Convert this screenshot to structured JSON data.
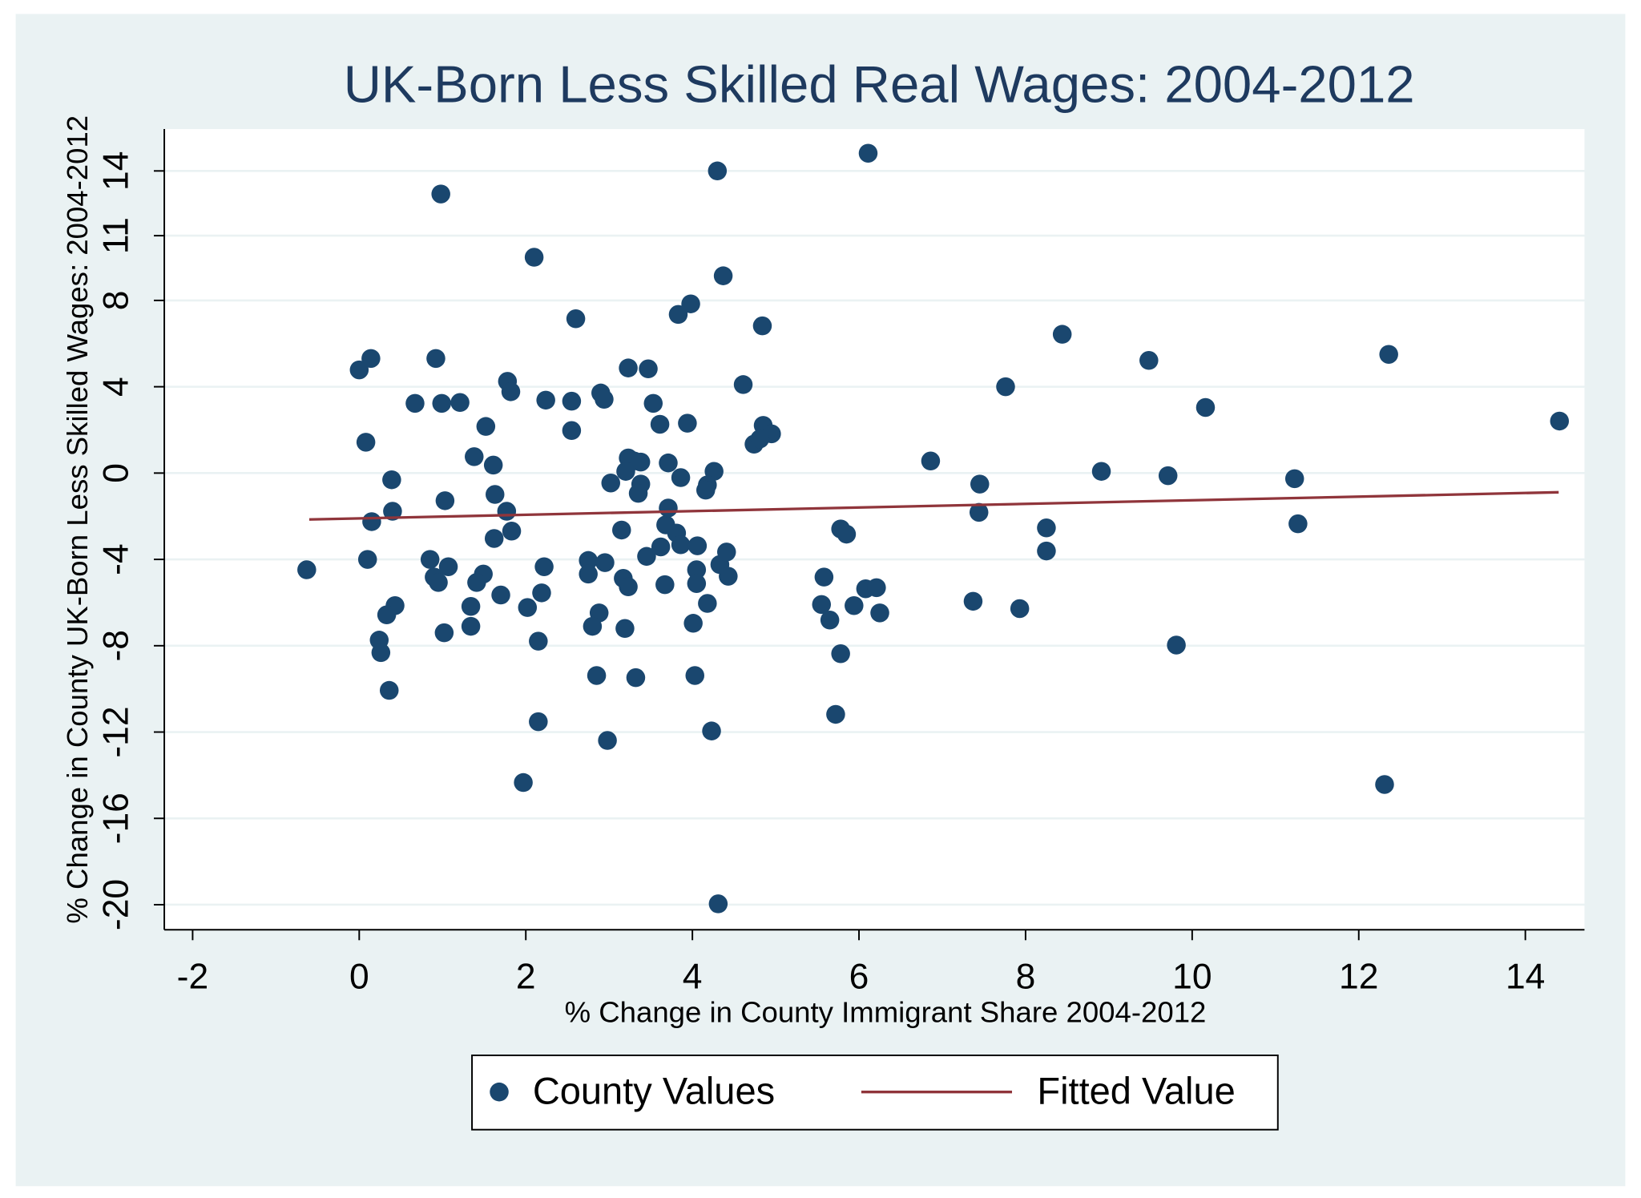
{
  "chart_data": {
    "type": "scatter",
    "title": "UK-Born Less Skilled Real Wages: 2004-2012",
    "x_label": "% Change in County Immigrant Share 2004-2012",
    "y_label": "% Change in County UK-Born Less Skilled Wages: 2004-2012",
    "xlim": [
      -2.34,
      14.71
    ],
    "ylim": [
      -21.16,
      15.94
    ],
    "xticks": [
      -2,
      0,
      2,
      4,
      6,
      8,
      10,
      12,
      14
    ],
    "yticks": [
      -20,
      -16,
      -12,
      -8,
      -4,
      0,
      4,
      8,
      11,
      14
    ],
    "grid": true,
    "legend": "bottom",
    "series": [
      {
        "name": "County Values",
        "type": "scatter",
        "color": "#1a476f",
        "x": [
          -0.63,
          0,
          0.14,
          0.08,
          0.15,
          0.1,
          0.39,
          0.4,
          0.43,
          0.33,
          0.24,
          0.26,
          0.36,
          0.67,
          0.98,
          0.92,
          0.99,
          1.21,
          1.03,
          0.85,
          0.9,
          0.95,
          1.07,
          1.02,
          1.38,
          1.52,
          1.61,
          1.63,
          1.78,
          1.82,
          1.77,
          1.83,
          1.62,
          1.49,
          1.41,
          1.34,
          1.34,
          1.7,
          2.1,
          2.24,
          2.55,
          2.55,
          2.6,
          2.22,
          2.19,
          2.02,
          2.15,
          2.15,
          1.97,
          2.9,
          2.94,
          3.23,
          3.47,
          3.53,
          3.61,
          3.02,
          3.23,
          3.3,
          3.38,
          3.2,
          3.38,
          3.35,
          3.15,
          2.75,
          2.75,
          2.95,
          3.17,
          3.23,
          2.88,
          2.8,
          3.19,
          2.85,
          3.32,
          2.98,
          3.45,
          3.62,
          3.68,
          3.71,
          3.81,
          3.86,
          3.67,
          3.71,
          3.86,
          3.83,
          3.98,
          3.94,
          4.06,
          4.05,
          4.05,
          4.01,
          4.03,
          4.18,
          4.23,
          4.31,
          4.3,
          4.37,
          4.26,
          4.18,
          4.16,
          4.33,
          4.41,
          4.43,
          4.84,
          4.61,
          4.85,
          4.95,
          4.74,
          4.81,
          6.11,
          5.58,
          5.55,
          5.65,
          5.78,
          5.85,
          5.94,
          6.08,
          6.21,
          6.25,
          5.78,
          5.72,
          6.86,
          7.45,
          7.44,
          7.37,
          7.93,
          7.76,
          8.44,
          8.25,
          8.25,
          8.91,
          9.48,
          9.71,
          9.81,
          10.16,
          11.23,
          11.27,
          12.36,
          12.31,
          14.41
        ],
        "values": [
          -4.48,
          4.78,
          5.31,
          1.43,
          -2.25,
          -4.0,
          -0.31,
          -1.77,
          -6.14,
          -6.57,
          -7.74,
          -8.32,
          -10.07,
          3.23,
          12.93,
          5.31,
          3.23,
          3.27,
          -1.28,
          -4.0,
          -4.82,
          -5.07,
          -4.34,
          -7.4,
          0.76,
          2.16,
          0.37,
          -0.99,
          4.25,
          3.77,
          -1.77,
          -2.69,
          -3.03,
          -4.68,
          -5.07,
          -6.18,
          -7.1,
          -5.65,
          10.0,
          3.38,
          3.33,
          1.97,
          7.15,
          -4.34,
          -5.55,
          -6.23,
          -7.79,
          -11.52,
          -14.34,
          3.71,
          3.42,
          4.87,
          4.83,
          3.23,
          2.26,
          -0.46,
          0.7,
          0.56,
          0.51,
          0.08,
          -0.51,
          -0.94,
          -2.64,
          -4.05,
          -4.68,
          -4.15,
          -4.88,
          -5.27,
          -6.48,
          -7.1,
          -7.2,
          -9.38,
          -9.48,
          -12.39,
          -3.86,
          -3.42,
          -2.4,
          -1.62,
          -2.78,
          -3.32,
          -5.17,
          0.47,
          -0.21,
          7.35,
          7.84,
          2.31,
          -3.37,
          -4.48,
          -5.12,
          -6.96,
          -9.38,
          -6.04,
          -11.95,
          -19.96,
          14.0,
          9.14,
          0.08,
          -0.55,
          -0.79,
          -4.24,
          -3.66,
          -4.78,
          6.82,
          4.1,
          2.21,
          1.82,
          1.34,
          1.58,
          14.82,
          -4.82,
          -6.09,
          -6.81,
          -2.59,
          -2.83,
          -6.14,
          -5.36,
          -5.31,
          -6.48,
          -8.37,
          -11.18,
          0.56,
          -0.51,
          -1.82,
          -5.94,
          -6.28,
          4.0,
          6.43,
          -2.54,
          -3.61,
          0.08,
          5.22,
          -0.12,
          -7.97,
          3.04,
          -0.26,
          -2.35,
          5.5,
          -14.43,
          2.41
        ]
      },
      {
        "name": "Fitted Value",
        "type": "line",
        "color": "#90353b",
        "x": [
          -0.6,
          14.4
        ],
        "values": [
          -2.15,
          -0.89
        ]
      }
    ]
  }
}
